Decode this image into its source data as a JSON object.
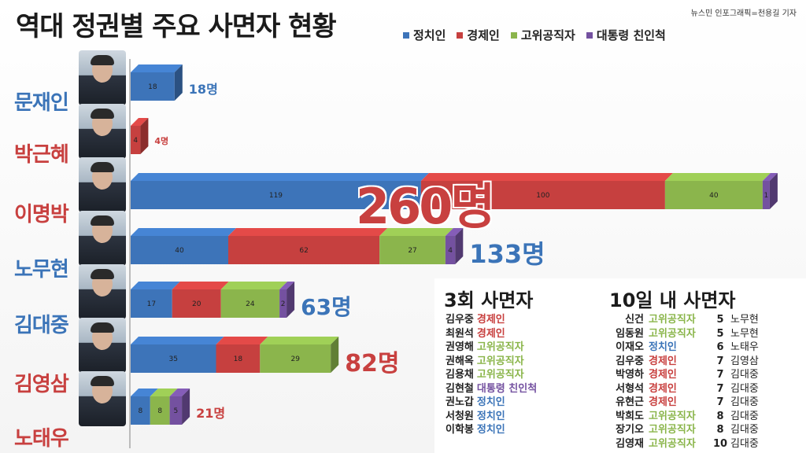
{
  "header": {
    "title": "역대 정권별 주요 사면자 현황",
    "credit": "뉴스민 인포그래픽=천용길 기자"
  },
  "colors": {
    "정치인": "#3d74b9",
    "경제인": "#c6403f",
    "고위공직자": "#8bb54c",
    "대통령 친인척": "#7451a0",
    "total_blue": "#3b74b8",
    "total_red": "#c8403f"
  },
  "chart_data": {
    "type": "bar",
    "orientation": "horizontal",
    "stacked": true,
    "title": "역대 정권별 주요 사면자 현황",
    "legend_position": "top-right",
    "categories": [
      "문재인",
      "박근혜",
      "이명박",
      "노무현",
      "김대중",
      "김영삼",
      "노태우"
    ],
    "series": [
      {
        "name": "정치인",
        "values": [
          18,
          0,
          119,
          40,
          17,
          35,
          8
        ]
      },
      {
        "name": "경제인",
        "values": [
          0,
          4,
          100,
          62,
          20,
          18,
          0
        ]
      },
      {
        "name": "고위공직자",
        "values": [
          0,
          0,
          40,
          27,
          24,
          29,
          8
        ]
      },
      {
        "name": "대통령 친인척",
        "values": [
          0,
          0,
          1,
          4,
          2,
          0,
          5
        ]
      }
    ],
    "totals": [
      "18명",
      "4명",
      "260명",
      "133명",
      "63명",
      "82명",
      "21명"
    ]
  },
  "presidents": [
    {
      "name": "문재인",
      "name_color": "#3b74b8"
    },
    {
      "name": "박근혜",
      "name_color": "#c8403f"
    },
    {
      "name": "이명박",
      "name_color": "#c8403f"
    },
    {
      "name": "노무현",
      "name_color": "#3b74b8"
    },
    {
      "name": "김대중",
      "name_color": "#3b74b8"
    },
    {
      "name": "김영삼",
      "name_color": "#c8403f"
    },
    {
      "name": "노태우",
      "name_color": "#c8403f"
    }
  ],
  "panel_three_times": {
    "title": "3회 사면자",
    "rows": [
      {
        "name": "김우중",
        "category": "경제인"
      },
      {
        "name": "최원석",
        "category": "경제인"
      },
      {
        "name": "권영해",
        "category": "고위공직자"
      },
      {
        "name": "권해옥",
        "category": "고위공직자"
      },
      {
        "name": "김용채",
        "category": "고위공직자"
      },
      {
        "name": "김현철",
        "category": "대통령 친인척"
      },
      {
        "name": "권노갑",
        "category": "정치인"
      },
      {
        "name": "서청원",
        "category": "정치인"
      },
      {
        "name": "이학봉",
        "category": "정치인"
      }
    ]
  },
  "panel_ten_days": {
    "title": "10일 내 사면자",
    "rows": [
      {
        "name": "신건",
        "category": "고위공직자",
        "days": "5",
        "by": "노무현"
      },
      {
        "name": "임동원",
        "category": "고위공직자",
        "days": "5",
        "by": "노무현"
      },
      {
        "name": "이재오",
        "category": "정치인",
        "days": "6",
        "by": "노태우"
      },
      {
        "name": "김우중",
        "category": "경제인",
        "days": "7",
        "by": "김영삼"
      },
      {
        "name": "박영하",
        "category": "경제인",
        "days": "7",
        "by": "김대중"
      },
      {
        "name": "서형석",
        "category": "경제인",
        "days": "7",
        "by": "김대중"
      },
      {
        "name": "유현근",
        "category": "경제인",
        "days": "7",
        "by": "김대중"
      },
      {
        "name": "박희도",
        "category": "고위공직자",
        "days": "8",
        "by": "김대중"
      },
      {
        "name": "장기오",
        "category": "고위공직자",
        "days": "8",
        "by": "김대중"
      },
      {
        "name": "김영재",
        "category": "고위공직자",
        "days": "10",
        "by": "김대중"
      }
    ]
  }
}
